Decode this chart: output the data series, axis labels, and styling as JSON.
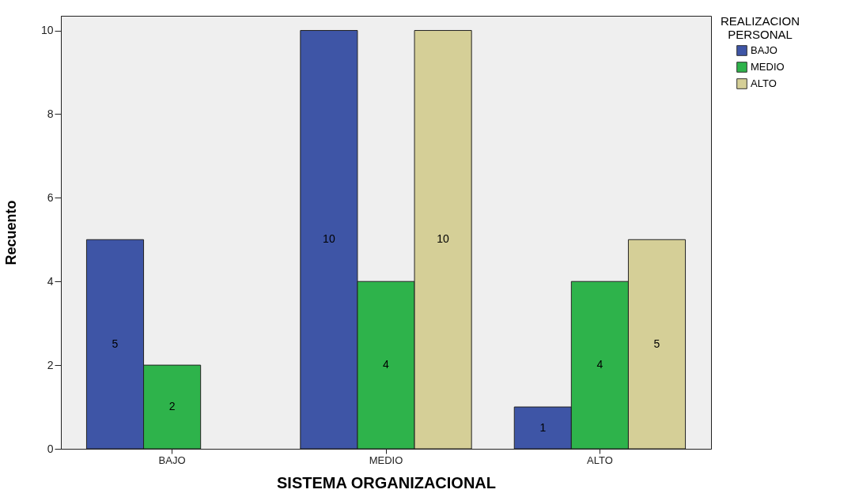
{
  "chart_data": {
    "type": "bar",
    "xlabel": "SISTEMA ORGANIZACIONAL",
    "ylabel": "Recuento",
    "legend_title": "REALIZACION PERSONAL",
    "categories": [
      "BAJO",
      "MEDIO",
      "ALTO"
    ],
    "series": [
      {
        "name": "BAJO",
        "color": "#3e55a6",
        "values": [
          5,
          10,
          1
        ]
      },
      {
        "name": "MEDIO",
        "color": "#2eb34b",
        "values": [
          2,
          4,
          4
        ]
      },
      {
        "name": "ALTO",
        "color": "#d5cf97",
        "values": [
          null,
          10,
          5
        ]
      }
    ],
    "ylim": [
      0,
      10.35
    ],
    "yticks": [
      0,
      2,
      4,
      6,
      8,
      10
    ],
    "grid": false,
    "legend": "top right",
    "data_labels": true
  }
}
